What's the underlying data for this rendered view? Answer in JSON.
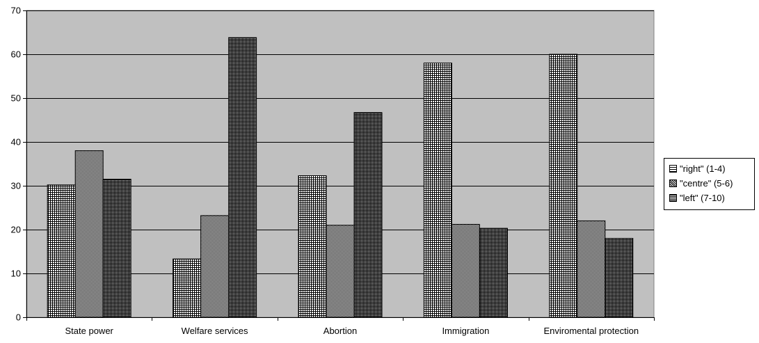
{
  "chart_data": {
    "type": "bar",
    "title": "",
    "xlabel": "",
    "ylabel": "",
    "ylim": [
      0,
      70
    ],
    "yticks": [
      0,
      10,
      20,
      30,
      40,
      50,
      60,
      70
    ],
    "grid": true,
    "legend_position": "right",
    "categories": [
      "State power",
      "Welfare services",
      "Abortion",
      "Immigration",
      "Enviromental protection"
    ],
    "series": [
      {
        "name": "\"right\" (1-4)",
        "values": [
          30.2,
          13.3,
          32.3,
          58.0,
          60.0
        ]
      },
      {
        "name": "\"centre\" (5-6)",
        "values": [
          38.0,
          23.2,
          21.0,
          21.2,
          22.0
        ]
      },
      {
        "name": "\"left\" (7-10)",
        "values": [
          31.5,
          63.8,
          46.7,
          20.3,
          18.0
        ]
      }
    ]
  },
  "colors": {
    "plot_background": "#c0c0c0",
    "gridline": "#000000",
    "bar_fill": "#ffffff",
    "bar_pattern": "#000000"
  }
}
